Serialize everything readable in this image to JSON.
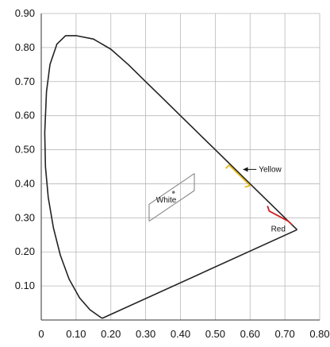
{
  "chart_data": {
    "type": "line",
    "xlim": [
      0,
      0.8
    ],
    "ylim": [
      0,
      0.9
    ],
    "x_ticks": [
      "0",
      "0.10",
      "0.20",
      "0.30",
      "0.40",
      "0.50",
      "0.60",
      "0.70",
      "0.80"
    ],
    "y_ticks": [
      "0.10",
      "0.20",
      "0.30",
      "0.40",
      "0.50",
      "0.60",
      "0.70",
      "0.80",
      "0.90"
    ],
    "grid": true,
    "series": [
      {
        "role": "spectral-locus",
        "color": "#222222",
        "points": [
          [
            0.735,
            0.265
          ],
          [
            0.7,
            0.3
          ],
          [
            0.65,
            0.35
          ],
          [
            0.6,
            0.4
          ],
          [
            0.55,
            0.45
          ],
          [
            0.5,
            0.5
          ],
          [
            0.45,
            0.55
          ],
          [
            0.4,
            0.6
          ],
          [
            0.35,
            0.65
          ],
          [
            0.3,
            0.7
          ],
          [
            0.25,
            0.75
          ],
          [
            0.2,
            0.795
          ],
          [
            0.15,
            0.825
          ],
          [
            0.1,
            0.835
          ],
          [
            0.07,
            0.835
          ],
          [
            0.045,
            0.81
          ],
          [
            0.025,
            0.75
          ],
          [
            0.015,
            0.67
          ],
          [
            0.01,
            0.55
          ],
          [
            0.012,
            0.45
          ],
          [
            0.02,
            0.36
          ],
          [
            0.035,
            0.27
          ],
          [
            0.055,
            0.19
          ],
          [
            0.08,
            0.12
          ],
          [
            0.11,
            0.065
          ],
          [
            0.14,
            0.03
          ],
          [
            0.165,
            0.012
          ],
          [
            0.175,
            0.005
          ]
        ]
      },
      {
        "role": "purple-line",
        "color": "#222222",
        "points": [
          [
            0.175,
            0.005
          ],
          [
            0.735,
            0.265
          ]
        ]
      },
      {
        "role": "white-region",
        "name": "White",
        "color": "#888888",
        "points": [
          [
            0.31,
            0.29
          ],
          [
            0.31,
            0.34
          ],
          [
            0.44,
            0.43
          ],
          [
            0.44,
            0.38
          ],
          [
            0.31,
            0.29
          ]
        ]
      },
      {
        "role": "yellow-region",
        "name": "Yellow",
        "color": "#e2b616",
        "points": [
          [
            0.53,
            0.445
          ],
          [
            0.54,
            0.455
          ],
          [
            0.6,
            0.395
          ],
          [
            0.585,
            0.39
          ]
        ]
      },
      {
        "role": "red-region",
        "name": "Red",
        "color": "#cc1f1f",
        "points": [
          [
            0.65,
            0.335
          ],
          [
            0.655,
            0.32
          ],
          [
            0.71,
            0.29
          ],
          [
            0.72,
            0.28
          ]
        ]
      }
    ],
    "white_point": [
      0.38,
      0.375
    ],
    "annotations": [
      {
        "text": "White",
        "x": 0.33,
        "y": 0.345
      },
      {
        "text": "Yellow",
        "x": 0.625,
        "y": 0.435,
        "arrow_to": [
          0.58,
          0.435
        ]
      },
      {
        "text": "Red",
        "x": 0.66,
        "y": 0.26
      }
    ]
  }
}
